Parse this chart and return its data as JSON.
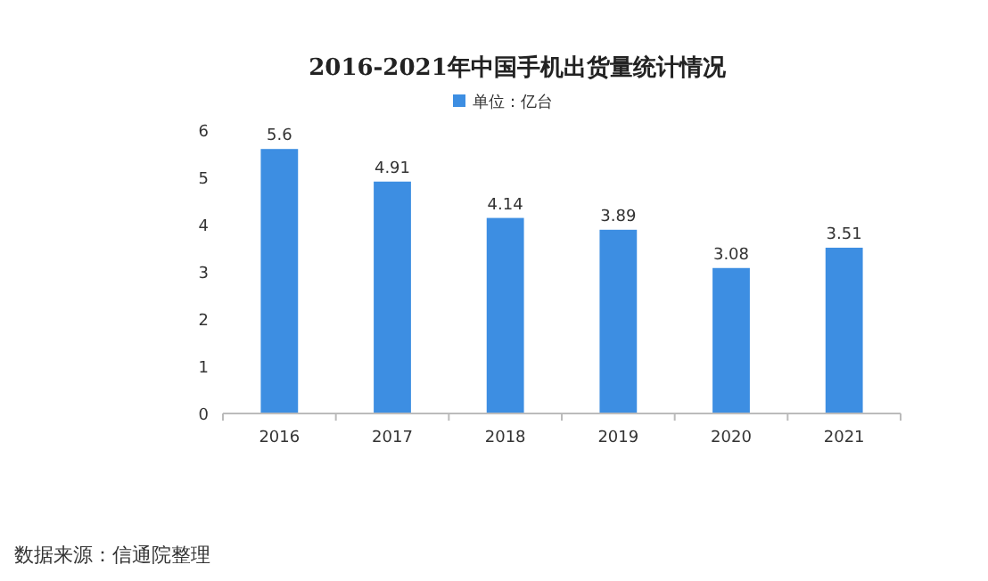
{
  "chart_data": {
    "type": "bar",
    "title": "2016-2021年中国手机出货量统计情况",
    "categories": [
      "2016",
      "2017",
      "2018",
      "2019",
      "2020",
      "2021"
    ],
    "series": [
      {
        "name": "单位：亿台",
        "color": "#3d8ee2",
        "values": [
          5.6,
          4.91,
          4.14,
          3.89,
          3.08,
          3.51
        ]
      }
    ],
    "ylim": [
      0,
      6
    ],
    "yticks": [
      0,
      1,
      2,
      3,
      4,
      5,
      6
    ],
    "data_labels": true,
    "legend": "top",
    "grid": false,
    "annotations": [
      "数据来源：信通院整理"
    ]
  }
}
